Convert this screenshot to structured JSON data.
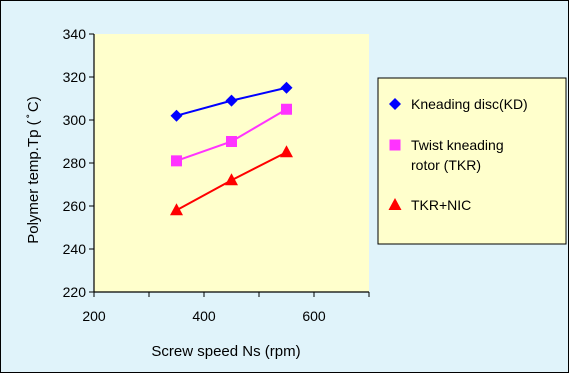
{
  "chart_data": {
    "type": "line",
    "title": "",
    "xlabel": "Screw speed Ns (rpm)",
    "ylabel": "Polymer temp.Tp ( ̊ C)",
    "xlim": [
      200,
      700
    ],
    "ylim": [
      220,
      340
    ],
    "xticks": [
      200,
      400,
      600
    ],
    "yticks": [
      220,
      240,
      260,
      280,
      300,
      320,
      340
    ],
    "grid": false,
    "legend_position": "right",
    "background_color": "#E0F3FA",
    "plot_background_color": "#FFFFCC",
    "series": [
      {
        "name": "Kneading disc(KD)",
        "marker": "diamond",
        "color": "#0000FF",
        "x": [
          350,
          450,
          550
        ],
        "y": [
          302,
          309,
          315
        ]
      },
      {
        "name": "Twist kneading rotor (TKR)",
        "marker": "square",
        "color": "#FF33FF",
        "x": [
          350,
          450,
          550
        ],
        "y": [
          281,
          290,
          305
        ]
      },
      {
        "name": "TKR+NIC",
        "marker": "triangle",
        "color": "#FF0000",
        "x": [
          350,
          450,
          550
        ],
        "y": [
          258,
          272,
          285
        ]
      }
    ]
  }
}
